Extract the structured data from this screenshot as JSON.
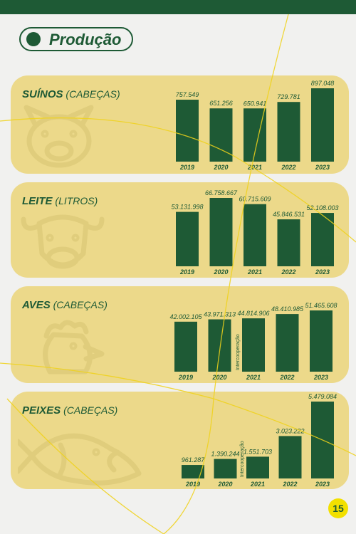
{
  "page": {
    "title": "Produção",
    "page_number": "15"
  },
  "colors": {
    "green": "#1e5a35",
    "panel": "#ecd98a",
    "background": "#f1f1ef",
    "accent_yellow": "#f2e000"
  },
  "chart_data": [
    {
      "type": "bar",
      "name": "SUÍNOS",
      "unit": "(CABEÇAS)",
      "categories": [
        "2019",
        "2020",
        "2021",
        "2022",
        "2023"
      ],
      "values": [
        757549,
        651256,
        650941,
        729781,
        897048
      ],
      "value_labels": [
        "757.549",
        "651.256",
        "650.941",
        "729.781",
        "897.048"
      ],
      "note": "",
      "note_index": -1,
      "icon": "pig-icon"
    },
    {
      "type": "bar",
      "name": "LEITE",
      "unit": "(LITROS)",
      "categories": [
        "2019",
        "2020",
        "2021",
        "2022",
        "2023"
      ],
      "values": [
        53131998,
        66758667,
        60715609,
        45846531,
        52108003
      ],
      "value_labels": [
        "53.131.998",
        "66.758.667",
        "60.715.609",
        "45.846.531",
        "52.108.003"
      ],
      "note": "",
      "note_index": -1,
      "icon": "cow-icon"
    },
    {
      "type": "bar",
      "name": "AVES",
      "unit": "(CABEÇAS)",
      "categories": [
        "2019",
        "2020",
        "2021",
        "2022",
        "2023"
      ],
      "values": [
        42002105,
        43971313,
        44814906,
        48410985,
        51465608
      ],
      "value_labels": [
        "42.002.105",
        "43.971.313",
        "44.814.906",
        "48.410.985",
        "51.465.608"
      ],
      "note": "Intercooperação",
      "note_index": 2,
      "icon": "chicken-icon"
    },
    {
      "type": "bar",
      "name": "PEIXES",
      "unit": "(CABEÇAS)",
      "categories": [
        "2019",
        "2020",
        "2021",
        "2022",
        "2023"
      ],
      "values": [
        961287,
        1390244,
        1551703,
        3023222,
        5479084
      ],
      "value_labels": [
        "961.287",
        "1.390.244",
        "1.551.703",
        "3.023.222",
        "5.479.084"
      ],
      "note": "Intercooperação",
      "note_index": 2,
      "icon": "fish-icon"
    }
  ]
}
